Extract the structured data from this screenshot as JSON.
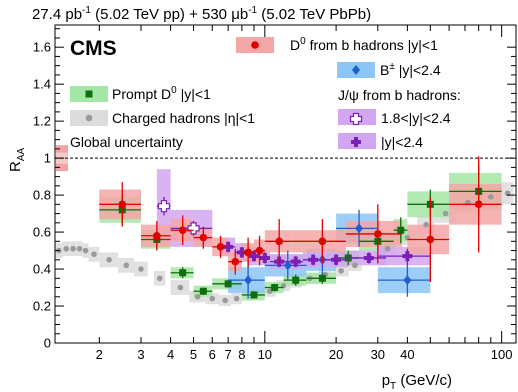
{
  "header": {
    "lumi_pp_value": "27.4 pb",
    "lumi_pp_exp": "-1",
    "lumi_pp_label": " (5.02 TeV pp) + 530 ",
    "lumi_pbpb_unit": "μb",
    "lumi_pbpb_exp": "-1",
    "lumi_pbpb_label": " (5.02 TeV PbPb)"
  },
  "logo": "CMS",
  "chart_data": {
    "type": "scatter",
    "xscale": "log",
    "xlim": [
      1.3,
      115
    ],
    "ylim": [
      0,
      1.72
    ],
    "xlabel": {
      "main": "p",
      "sub": "T",
      "rest": " (GeV/c)"
    },
    "ylabel": {
      "main": "R",
      "sub": "AA"
    },
    "x_ticks": [
      2,
      3,
      4,
      5,
      6,
      7,
      8,
      10,
      20,
      30,
      40,
      100
    ],
    "x_tick_labels": [
      "2",
      "3",
      "4",
      "5",
      "6",
      "7",
      "8",
      "10",
      "20",
      "30",
      "40",
      "100"
    ],
    "y_ticks": [
      0,
      0.2,
      0.4,
      0.6,
      0.8,
      1.0,
      1.2,
      1.4,
      1.6
    ],
    "y_tick_labels": [
      "0",
      "0.2",
      "0.4",
      "0.6",
      "0.8",
      "1",
      "1.2",
      "1.4",
      "1.6"
    ],
    "reference_line": 1.0,
    "global_uncertainty_label": "Global uncertainty",
    "global_uncertainty": [
      {
        "lo": 0.93,
        "hi": 1.07,
        "color": "#f4a3a3"
      },
      {
        "lo": 0.97,
        "hi": 1.03,
        "color": "#f6c9c9"
      }
    ],
    "series": [
      {
        "name": "Charged hadrons |η|<1",
        "marker": "circle",
        "color": "#9a9a9a",
        "box": "#dcdcdc",
        "points": [
          {
            "x": 1.35,
            "y": 0.5,
            "ex": 0.05,
            "sy": 0.04
          },
          {
            "x": 1.45,
            "y": 0.51,
            "ex": 0.05,
            "sy": 0.04
          },
          {
            "x": 1.55,
            "y": 0.51,
            "ex": 0.05,
            "sy": 0.04
          },
          {
            "x": 1.65,
            "y": 0.51,
            "ex": 0.05,
            "sy": 0.04
          },
          {
            "x": 1.75,
            "y": 0.5,
            "ex": 0.05,
            "sy": 0.04
          },
          {
            "x": 1.9,
            "y": 0.48,
            "ex": 0.1,
            "sy": 0.04
          },
          {
            "x": 2.2,
            "y": 0.45,
            "ex": 0.2,
            "sy": 0.04
          },
          {
            "x": 2.6,
            "y": 0.42,
            "ex": 0.2,
            "sy": 0.04
          },
          {
            "x": 3.0,
            "y": 0.4,
            "ex": 0.2,
            "sy": 0.04
          },
          {
            "x": 3.6,
            "y": 0.35,
            "ex": 0.2,
            "sy": 0.04
          },
          {
            "x": 4.4,
            "y": 0.3,
            "ex": 0.4,
            "sy": 0.04
          },
          {
            "x": 5.2,
            "y": 0.25,
            "ex": 0.4,
            "sy": 0.03
          },
          {
            "x": 6.0,
            "y": 0.24,
            "ex": 0.4,
            "sy": 0.03
          },
          {
            "x": 6.8,
            "y": 0.23,
            "ex": 0.4,
            "sy": 0.03
          },
          {
            "x": 7.6,
            "y": 0.24,
            "ex": 0.4,
            "sy": 0.03
          },
          {
            "x": 9.0,
            "y": 0.26,
            "ex": 0.6,
            "sy": 0.03
          },
          {
            "x": 10.5,
            "y": 0.28,
            "ex": 0.6,
            "sy": 0.03
          },
          {
            "x": 12.0,
            "y": 0.31,
            "ex": 0.8,
            "sy": 0.03
          },
          {
            "x": 13.5,
            "y": 0.33,
            "ex": 0.8,
            "sy": 0.03
          },
          {
            "x": 15.5,
            "y": 0.35,
            "ex": 1.2,
            "sy": 0.03
          },
          {
            "x": 18.0,
            "y": 0.37,
            "ex": 1.2,
            "sy": 0.03
          },
          {
            "x": 21.0,
            "y": 0.39,
            "ex": 1.6,
            "sy": 0.03
          },
          {
            "x": 24.0,
            "y": 0.42,
            "ex": 1.6,
            "sy": 0.03
          },
          {
            "x": 28.0,
            "y": 0.46,
            "ex": 2.0,
            "sy": 0.03
          },
          {
            "x": 33.0,
            "y": 0.51,
            "ex": 3.0,
            "sy": 0.04
          },
          {
            "x": 40.0,
            "y": 0.57,
            "ex": 4.0,
            "sy": 0.04
          },
          {
            "x": 48.0,
            "y": 0.64,
            "ex": 4.0,
            "sy": 0.05
          },
          {
            "x": 58.0,
            "y": 0.7,
            "ex": 6.0,
            "sy": 0.05
          },
          {
            "x": 72.0,
            "y": 0.76,
            "ex": 8.0,
            "sy": 0.06
          },
          {
            "x": 90.0,
            "y": 0.79,
            "ex": 10.0,
            "sy": 0.06
          },
          {
            "x": 106.0,
            "y": 0.81,
            "ex": 6.0,
            "sy": 0.06
          }
        ]
      },
      {
        "name": "Prompt D",
        "legend_sup": "0",
        "legend_rest": " |y|<1",
        "marker": "square",
        "color": "#0f6e0f",
        "box": "#a4e6a4",
        "points": [
          {
            "x": 2.5,
            "y": 0.72,
            "ex": 0.5,
            "sy": 0.07,
            "ey": 0.08
          },
          {
            "x": 3.5,
            "y": 0.56,
            "ex": 0.5,
            "sy": 0.05,
            "ey": 0.05
          },
          {
            "x": 4.5,
            "y": 0.38,
            "ex": 0.5,
            "sy": 0.03,
            "ey": 0.03
          },
          {
            "x": 5.5,
            "y": 0.28,
            "ex": 0.5,
            "sy": 0.03,
            "ey": 0.02
          },
          {
            "x": 7.0,
            "y": 0.32,
            "ex": 1.0,
            "sy": 0.03,
            "ey": 0.02
          },
          {
            "x": 9.0,
            "y": 0.26,
            "ex": 1.0,
            "sy": 0.03,
            "ey": 0.02
          },
          {
            "x": 11.0,
            "y": 0.3,
            "ex": 1.0,
            "sy": 0.03,
            "ey": 0.02
          },
          {
            "x": 13.5,
            "y": 0.34,
            "ex": 1.5,
            "sy": 0.03,
            "ey": 0.03
          },
          {
            "x": 17.5,
            "y": 0.35,
            "ex": 2.5,
            "sy": 0.03,
            "ey": 0.03
          },
          {
            "x": 22.5,
            "y": 0.46,
            "ex": 2.5,
            "sy": 0.04,
            "ey": 0.04
          },
          {
            "x": 30.0,
            "y": 0.55,
            "ex": 5.0,
            "sy": 0.05,
            "ey": 0.05
          },
          {
            "x": 37.5,
            "y": 0.61,
            "ex": 2.5,
            "sy": 0.06,
            "ey": 0.07
          },
          {
            "x": 50.0,
            "y": 0.75,
            "ex": 10.0,
            "sy": 0.07,
            "ey": 0.08
          },
          {
            "x": 80.0,
            "y": 0.82,
            "ex": 20.0,
            "sy": 0.1,
            "ey": 0.14
          }
        ]
      },
      {
        "name": "B",
        "legend_sup": "±",
        "legend_rest": " |y|<2.4",
        "marker": "diamond",
        "color": "#1f5fcf",
        "box": "#8cc6f6",
        "points": [
          {
            "x": 8.5,
            "y": 0.34,
            "ex": 1.5,
            "sy": 0.07,
            "ey": 0.1
          },
          {
            "x": 12.5,
            "y": 0.42,
            "ex": 2.5,
            "sy": 0.06,
            "ey": 0.08
          },
          {
            "x": 17.5,
            "y": 0.45,
            "ex": 2.5,
            "sy": 0.06,
            "ey": 0.08
          },
          {
            "x": 25.0,
            "y": 0.62,
            "ex": 5.0,
            "sy": 0.08,
            "ey": 0.1
          },
          {
            "x": 40.0,
            "y": 0.34,
            "ex": 10.0,
            "sy": 0.07,
            "ey": 0.09
          }
        ]
      },
      {
        "name": "1.8<|y|<2.4",
        "marker": "cross-open",
        "color": "#7a1fb8",
        "box": "#d2a6f0",
        "points": [
          {
            "x": 3.75,
            "y": 0.74,
            "ex": 0.25,
            "sy": 0.2,
            "ey": 0.05
          },
          {
            "x": 5.0,
            "y": 0.62,
            "ex": 1.0,
            "sy": 0.1,
            "ey": 0.04
          }
        ]
      },
      {
        "name": "|y|<2.4",
        "marker": "cross",
        "color": "#7a1fb8",
        "box": "#d2a6f0",
        "points": [
          {
            "x": 7.0,
            "y": 0.52,
            "ex": 0.5,
            "sy": 0.05,
            "ey": 0.03
          },
          {
            "x": 8.0,
            "y": 0.49,
            "ex": 0.5,
            "sy": 0.05,
            "ey": 0.03
          },
          {
            "x": 9.0,
            "y": 0.47,
            "ex": 0.5,
            "sy": 0.05,
            "ey": 0.03
          },
          {
            "x": 10.0,
            "y": 0.46,
            "ex": 0.5,
            "sy": 0.04,
            "ey": 0.03
          },
          {
            "x": 11.5,
            "y": 0.44,
            "ex": 1.0,
            "sy": 0.04,
            "ey": 0.03
          },
          {
            "x": 13.5,
            "y": 0.44,
            "ex": 1.0,
            "sy": 0.04,
            "ey": 0.03
          },
          {
            "x": 16.0,
            "y": 0.45,
            "ex": 1.5,
            "sy": 0.04,
            "ey": 0.03
          },
          {
            "x": 20.0,
            "y": 0.45,
            "ex": 2.5,
            "sy": 0.04,
            "ey": 0.03
          },
          {
            "x": 27.5,
            "y": 0.46,
            "ex": 5.0,
            "sy": 0.04,
            "ey": 0.03
          },
          {
            "x": 40.0,
            "y": 0.47,
            "ex": 10.0,
            "sy": 0.05,
            "ey": 0.04
          }
        ]
      },
      {
        "name": "D",
        "legend_sup": "0",
        "legend_rest": " from b hadrons |y|<1",
        "marker": "circle-filled",
        "color": "#e00000",
        "box": "#f4a6a6",
        "points": [
          {
            "x": 2.5,
            "y": 0.75,
            "ex": 0.5,
            "sy": 0.08,
            "ey": 0.12
          },
          {
            "x": 3.5,
            "y": 0.58,
            "ex": 0.5,
            "sy": 0.06,
            "ey": 0.08
          },
          {
            "x": 4.5,
            "y": 0.61,
            "ex": 0.5,
            "sy": 0.06,
            "ey": 0.08
          },
          {
            "x": 5.5,
            "y": 0.57,
            "ex": 0.5,
            "sy": 0.05,
            "ey": 0.06
          },
          {
            "x": 6.5,
            "y": 0.52,
            "ex": 0.5,
            "sy": 0.05,
            "ey": 0.06
          },
          {
            "x": 7.5,
            "y": 0.44,
            "ex": 0.5,
            "sy": 0.05,
            "ey": 0.07
          },
          {
            "x": 8.5,
            "y": 0.49,
            "ex": 0.5,
            "sy": 0.05,
            "ey": 0.08
          },
          {
            "x": 9.5,
            "y": 0.5,
            "ex": 0.5,
            "sy": 0.06,
            "ey": 0.08
          },
          {
            "x": 11.5,
            "y": 0.55,
            "ex": 1.5,
            "sy": 0.06,
            "ey": 0.12
          },
          {
            "x": 17.5,
            "y": 0.55,
            "ex": 4.5,
            "sy": 0.06,
            "ey": 0.12
          },
          {
            "x": 30.0,
            "y": 0.59,
            "ex": 8.0,
            "sy": 0.07,
            "ey": 0.16
          },
          {
            "x": 50.0,
            "y": 0.56,
            "ex": 10.0,
            "sy": 0.08,
            "ey": 0.23
          },
          {
            "x": 80.0,
            "y": 0.75,
            "ex": 20.0,
            "sy": 0.11,
            "ey": 0.26
          }
        ]
      }
    ],
    "legend_text": {
      "jpsi_heading": "J/ψ from b hadrons:",
      "ch_hadrons": "Charged hadrons |η|<1"
    }
  }
}
